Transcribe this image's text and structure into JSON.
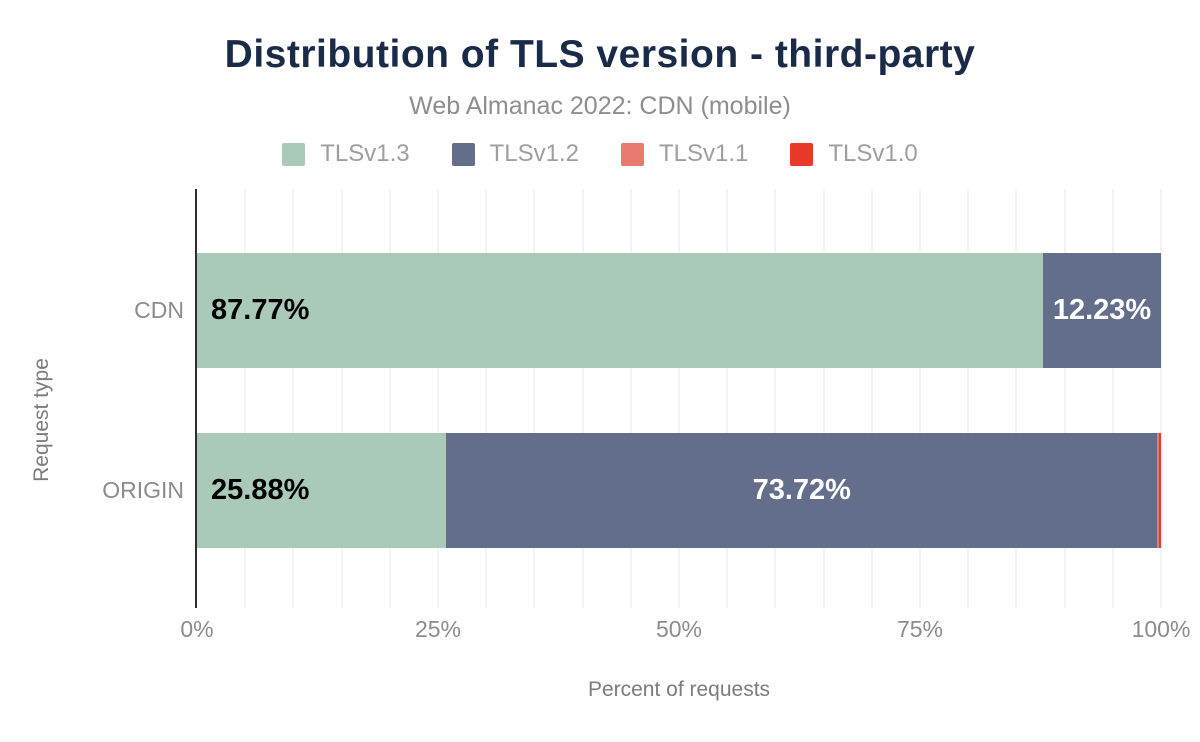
{
  "chart_data": {
    "type": "bar",
    "stacked": true,
    "orientation": "horizontal",
    "title": "Distribution of TLS version - third-party",
    "subtitle": "Web Almanac 2022: CDN (mobile)",
    "xlabel": "Percent of requests",
    "ylabel": "Request type",
    "xlim": [
      0,
      100
    ],
    "x_ticks": [
      {
        "label": "0%",
        "value": 0
      },
      {
        "label": "25%",
        "value": 25
      },
      {
        "label": "50%",
        "value": 50
      },
      {
        "label": "75%",
        "value": 75
      },
      {
        "label": "100%",
        "value": 100
      }
    ],
    "grid": "light vertical gridlines every 5%",
    "legend_position": "top",
    "categories": [
      "CDN",
      "ORIGIN"
    ],
    "series": [
      {
        "name": "TLSv1.3",
        "color": "#a9cab9",
        "label_color": "#000000",
        "values": [
          87.77,
          25.88
        ],
        "labels": [
          "87.77%",
          "25.88%"
        ]
      },
      {
        "name": "TLSv1.2",
        "color": "#636e8a",
        "label_color": "#ffffff",
        "values": [
          12.23,
          73.72
        ],
        "labels": [
          "12.23%",
          "73.72%"
        ]
      },
      {
        "name": "TLSv1.1",
        "color": "#e97a70",
        "label_color": "#ffffff",
        "values": [
          0,
          0.2
        ],
        "labels": [
          "",
          ""
        ]
      },
      {
        "name": "TLSv1.0",
        "color": "#ea382b",
        "label_color": "#ffffff",
        "values": [
          0,
          0.2
        ],
        "labels": [
          "",
          ""
        ]
      }
    ]
  },
  "colors": {
    "title": "#1a2b49",
    "subtitle": "#8e8e8e",
    "legend_text": "#9e9e9e",
    "axis_text": "#8c8c8c",
    "axis_title_text": "#7c7c7c",
    "axis_line": "#2e2e2e",
    "gridline": "#f3f3f3",
    "background": "#ffffff"
  }
}
